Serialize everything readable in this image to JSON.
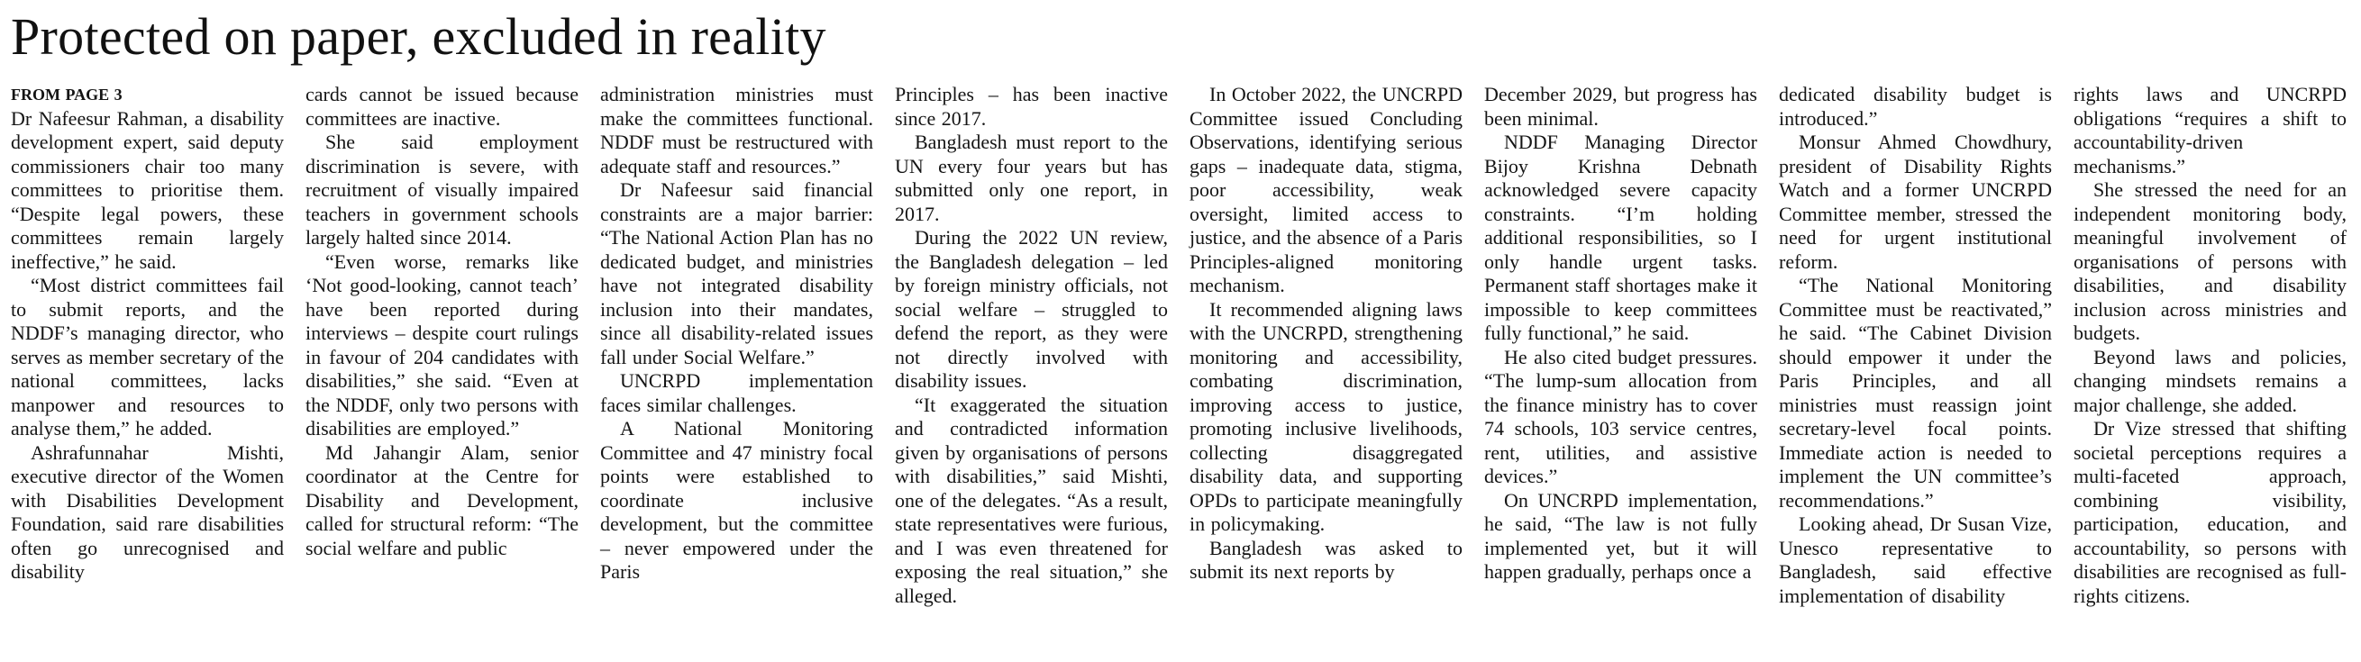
{
  "article": {
    "title": "Protected on paper, excluded in reality",
    "kicker": "FROM PAGE 3",
    "columns": [
      {
        "paragraphs": [
          {
            "indent": false,
            "text": "Dr Nafeesur Rahman, a disability development expert, said deputy commissioners chair too many committees to prioritise them. “Despite legal powers, these committees remain largely ineffective,” he said."
          },
          {
            "indent": true,
            "text": "“Most district committees fail to submit reports, and the NDDF’s managing director, who serves as member secretary of the national committees, lacks manpower and resources to analyse them,” he added."
          },
          {
            "indent": true,
            "text": "Ashrafunnahar Mishti, executive director of the Women with Disabilities Development Foundation, said rare disabilities often go unrecognised and disability"
          }
        ]
      },
      {
        "paragraphs": [
          {
            "indent": false,
            "text": "cards cannot be issued because committees are inactive."
          },
          {
            "indent": true,
            "text": "She said employment discrimination is severe, with recruitment of visually impaired teachers in government schools largely halted since 2014."
          },
          {
            "indent": true,
            "text": "“Even worse, remarks like ‘Not good-looking, cannot teach’ have been reported during interviews – despite court rulings in favour of 204 candidates with disabilities,” she said. “Even at the NDDF, only two persons with disabilities are employed.”"
          },
          {
            "indent": true,
            "text": "Md Jahangir Alam, senior coordinator at the Centre for Disability and Development, called for structural reform: “The social welfare and public"
          }
        ]
      },
      {
        "paragraphs": [
          {
            "indent": false,
            "text": "administration ministries must make the committees functional. NDDF must be restructured with adequate staff and resources.”"
          },
          {
            "indent": true,
            "text": "Dr Nafeesur said financial constraints are a major barrier: “The National Action Plan has no dedicated budget, and ministries have not integrated disability inclusion into their mandates, since all disability-related issues fall under Social Welfare.”"
          },
          {
            "indent": true,
            "text": "UNCRPD implementation faces similar challenges."
          },
          {
            "indent": true,
            "text": "A National Monitoring Committee and 47 ministry focal points were established to coordinate inclusive development, but the committee – never empowered under the Paris"
          }
        ]
      },
      {
        "paragraphs": [
          {
            "indent": false,
            "text": "Principles – has been inactive since 2017."
          },
          {
            "indent": true,
            "text": "Bangladesh must report to the UN every four years but has submitted only one report, in 2017."
          },
          {
            "indent": true,
            "text": "During the 2022 UN review, the Bangladesh delegation – led by foreign ministry officials, not social welfare – struggled to defend the report, as they were not directly involved with disability issues."
          },
          {
            "indent": true,
            "text": "“It exaggerated the situation and contradicted information given by organisations of persons with disabilities,” said Mishti, one of the delegates. “As a result, state representatives were furious, and I was even threatened for exposing the real situation,” she alleged."
          }
        ]
      },
      {
        "paragraphs": [
          {
            "indent": true,
            "text": "In October 2022, the UNCRPD Committee issued Concluding Observations, identifying serious gaps – inadequate data, stigma, poor accessibility, weak oversight, limited access to justice, and the absence of a Paris Principles-aligned monitoring mechanism."
          },
          {
            "indent": true,
            "text": "It recommended aligning laws with the UNCRPD, strengthening monitoring and accessibility, combating discrimination, improving access to justice, promoting inclusive livelihoods, collecting disaggregated disability data, and supporting OPDs to participate meaningfully in policymaking."
          },
          {
            "indent": true,
            "text": "Bangladesh was asked to submit its next reports by"
          }
        ]
      },
      {
        "paragraphs": [
          {
            "indent": false,
            "text": "December 2029, but progress has been minimal."
          },
          {
            "indent": true,
            "text": "NDDF Managing Director Bijoy Krishna Debnath acknowledged severe capacity constraints. “I’m holding additional responsibilities, so I only handle urgent tasks. Permanent staff shortages make it impossible to keep committees fully functional,” he said."
          },
          {
            "indent": true,
            "text": "He also cited budget pressures. “The lump-sum allocation from the finance ministry has to cover 74 schools, 103 service centres, rent, utilities, and assistive devices.”"
          },
          {
            "indent": true,
            "text": "On UNCRPD implementation, he said, “The law is not fully implemented yet, but it will happen gradually, perhaps once a"
          }
        ]
      },
      {
        "paragraphs": [
          {
            "indent": false,
            "text": "dedicated disability budget is introduced.”"
          },
          {
            "indent": true,
            "text": "Monsur Ahmed Chowdhury, president of Disability Rights Watch and a former UNCRPD Committee member, stressed the need for urgent institutional reform."
          },
          {
            "indent": true,
            "text": "“The National Monitoring Committee must be reactivated,” he said. “The Cabinet Division should empower it under the Paris Principles, and all ministries must reassign joint secretary-level focal points. Immediate action is needed to implement the UN committee’s recommendations.”"
          },
          {
            "indent": true,
            "text": "Looking ahead, Dr Susan Vize, Unesco representative to Bangladesh, said effective implementation of disability"
          }
        ]
      },
      {
        "paragraphs": [
          {
            "indent": false,
            "text": "rights laws and UNCRPD obligations “requires a shift to accountability-driven mechanisms.”"
          },
          {
            "indent": true,
            "text": "She stressed the need for an independent monitoring body, meaningful involvement of organisations of persons with disabilities, and disability inclusion across ministries and budgets."
          },
          {
            "indent": true,
            "text": "Beyond laws and policies, changing mindsets remains a major challenge, she added."
          },
          {
            "indent": true,
            "text": "Dr Vize stressed that shifting societal perceptions requires a multi-faceted approach, combining visibility, participation, education, and accountability, so persons with disabilities are recognised as full-rights citizens."
          }
        ]
      }
    ]
  }
}
